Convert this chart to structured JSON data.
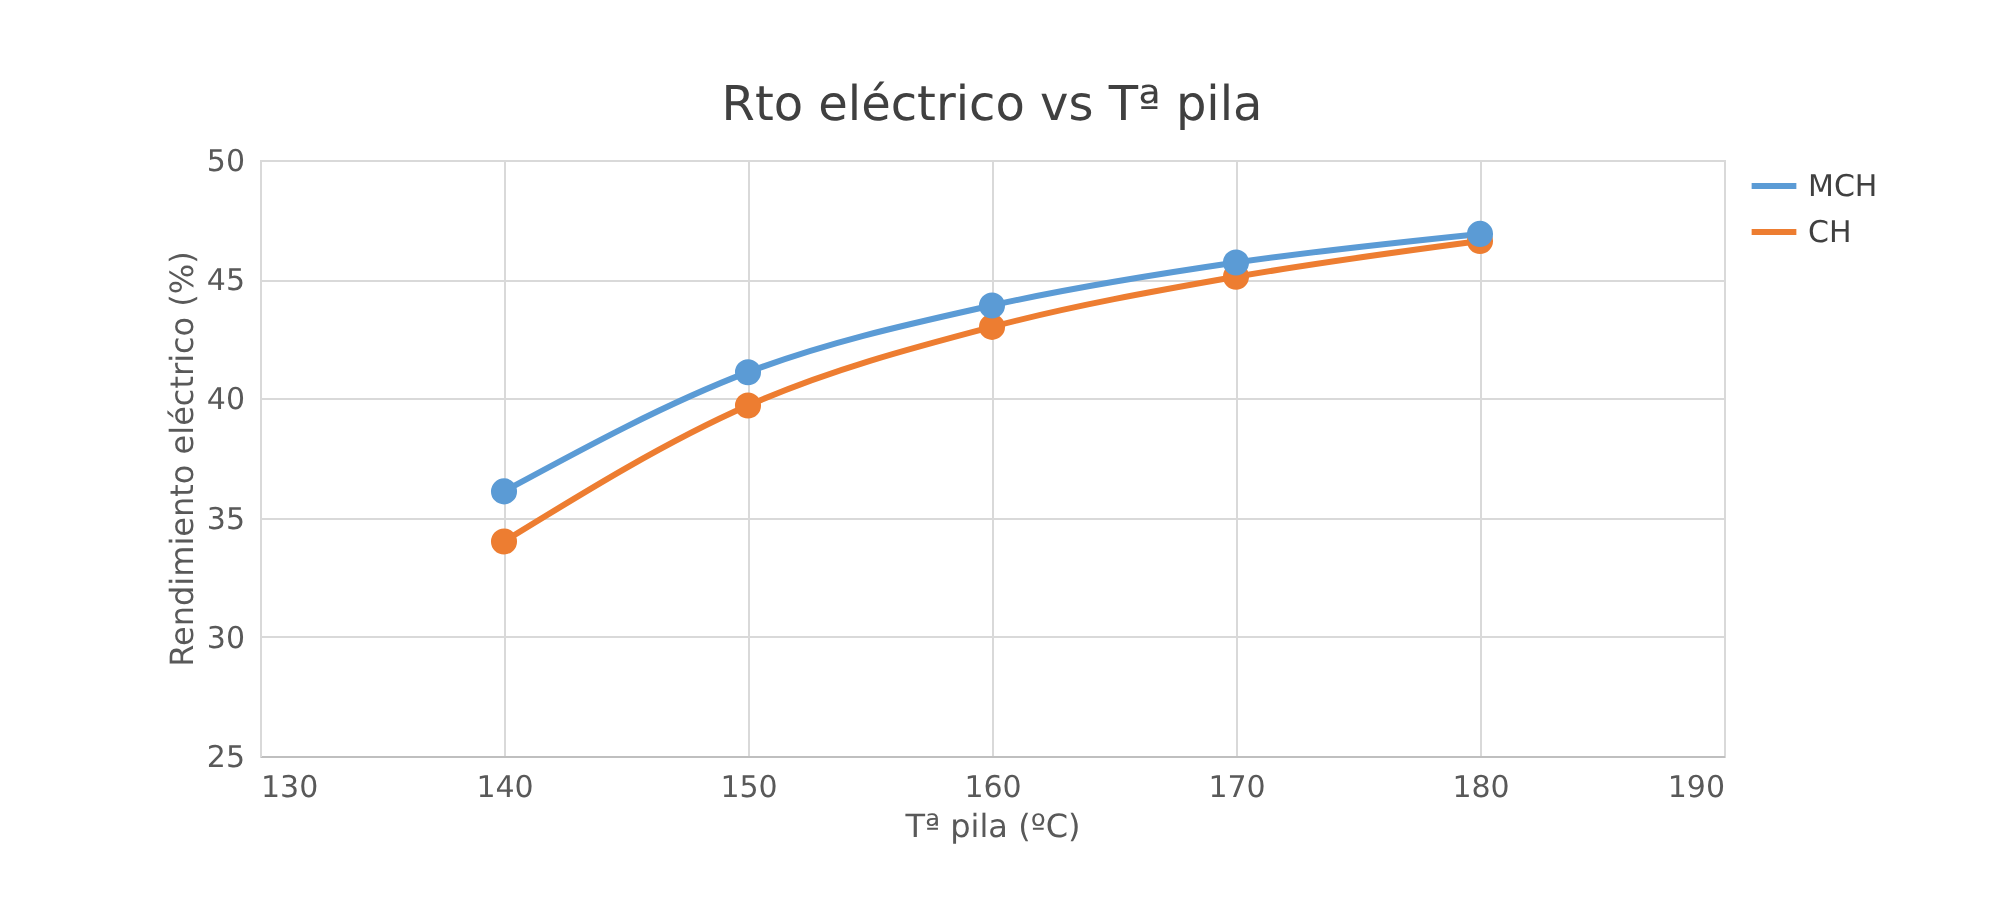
{
  "chart_data": {
    "type": "line",
    "title": "Rto eléctrico vs Tª pila",
    "xlabel": "Tª pila (ºC)",
    "ylabel": "Rendimiento eléctrico (%)",
    "x": [
      140,
      150,
      160,
      170,
      180
    ],
    "series": [
      {
        "name": "MCH",
        "color": "#5b9bd5",
        "values": [
          36.1,
          41.1,
          43.9,
          45.7,
          46.9
        ]
      },
      {
        "name": "CH",
        "color": "#ed7d31",
        "values": [
          34.0,
          39.7,
          43.0,
          45.1,
          46.6
        ]
      }
    ],
    "xlim": [
      130,
      190
    ],
    "xticks": [
      130,
      140,
      150,
      160,
      170,
      180,
      190
    ],
    "ylim": [
      25,
      50
    ],
    "yticks": [
      25,
      30,
      35,
      40,
      45,
      50
    ],
    "grid": true,
    "legend": "right",
    "marker": "circle",
    "line_style": "solid"
  }
}
